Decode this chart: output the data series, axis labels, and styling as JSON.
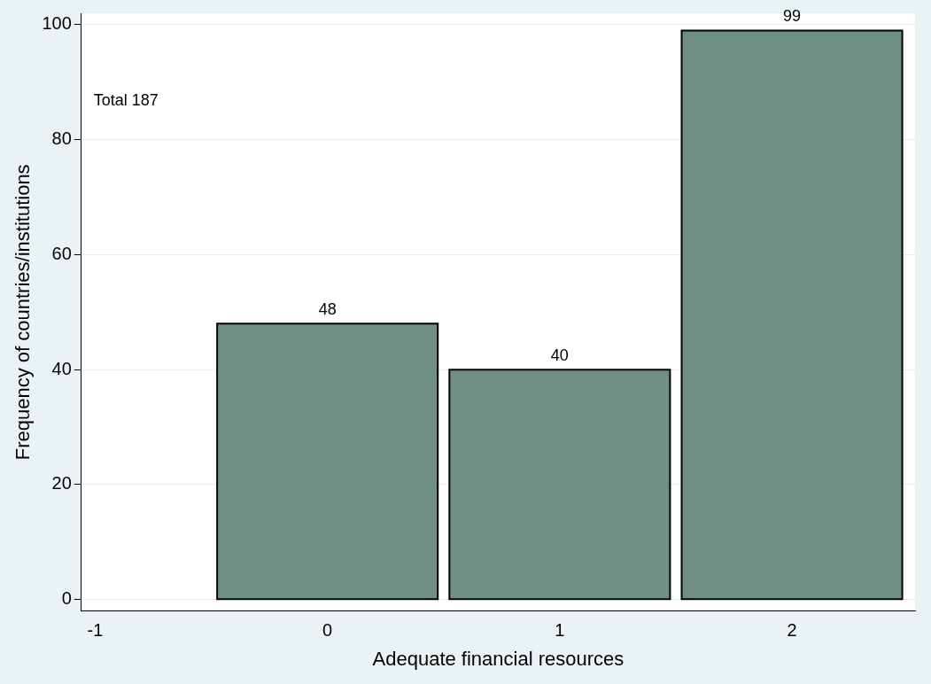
{
  "chart_data": {
    "type": "histogram",
    "xlabel": "Adequate financial resources",
    "ylabel": "Frequency of countries/institutions",
    "bins": [
      -0.5,
      0.5,
      1.5,
      2.5
    ],
    "values": [
      48,
      40,
      99
    ],
    "color": "#6f8f83",
    "data_labels": true,
    "xlim": [
      -1.06,
      2.53
    ],
    "xticks": [
      -1,
      0,
      1,
      2
    ],
    "ylim": [
      -2,
      102
    ],
    "yticks": [
      0,
      20,
      40,
      60,
      80,
      100
    ],
    "grid": "y",
    "annotations": [
      "Total 187"
    ]
  }
}
